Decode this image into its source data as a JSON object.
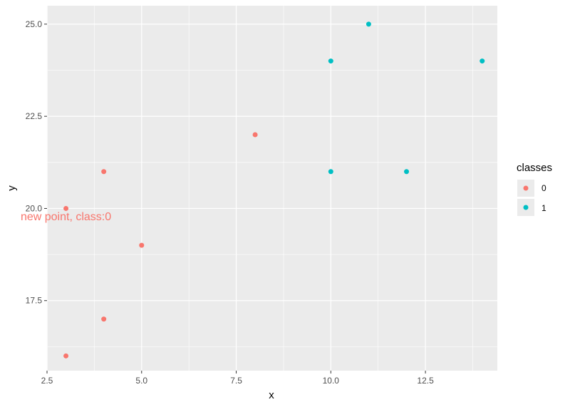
{
  "chart_data": {
    "type": "scatter",
    "title": "",
    "xlabel": "x",
    "ylabel": "y",
    "xlim": [
      2.5,
      14.4
    ],
    "ylim": [
      15.6,
      25.5
    ],
    "x_ticks": [
      2.5,
      5.0,
      7.5,
      10.0,
      12.5
    ],
    "x_tick_labels": [
      "2.5",
      "5.0",
      "7.5",
      "10.0",
      "12.5"
    ],
    "y_ticks": [
      17.5,
      20.0,
      22.5,
      25.0
    ],
    "y_tick_labels": [
      "17.5",
      "20.0",
      "22.5",
      "25.0"
    ],
    "grid": true,
    "legend": {
      "title": "classes",
      "placement": "right",
      "entries": [
        {
          "label": "0",
          "color": "#F8766D"
        },
        {
          "label": "1",
          "color": "#00BFC4"
        }
      ]
    },
    "series": [
      {
        "name": "0",
        "color": "#F8766D",
        "points": [
          {
            "x": 3,
            "y": 20
          },
          {
            "x": 4,
            "y": 21
          },
          {
            "x": 5,
            "y": 19
          },
          {
            "x": 4,
            "y": 17
          },
          {
            "x": 3,
            "y": 16
          },
          {
            "x": 8,
            "y": 22
          }
        ]
      },
      {
        "name": "1",
        "color": "#00BFC4",
        "points": [
          {
            "x": 10,
            "y": 24
          },
          {
            "x": 11,
            "y": 25
          },
          {
            "x": 14,
            "y": 24
          },
          {
            "x": 10,
            "y": 21
          },
          {
            "x": 12,
            "y": 21
          }
        ]
      }
    ],
    "annotations": [
      {
        "text": "new point, class:0",
        "x": 3,
        "y": 19.8,
        "color": "#F8766D"
      }
    ]
  }
}
